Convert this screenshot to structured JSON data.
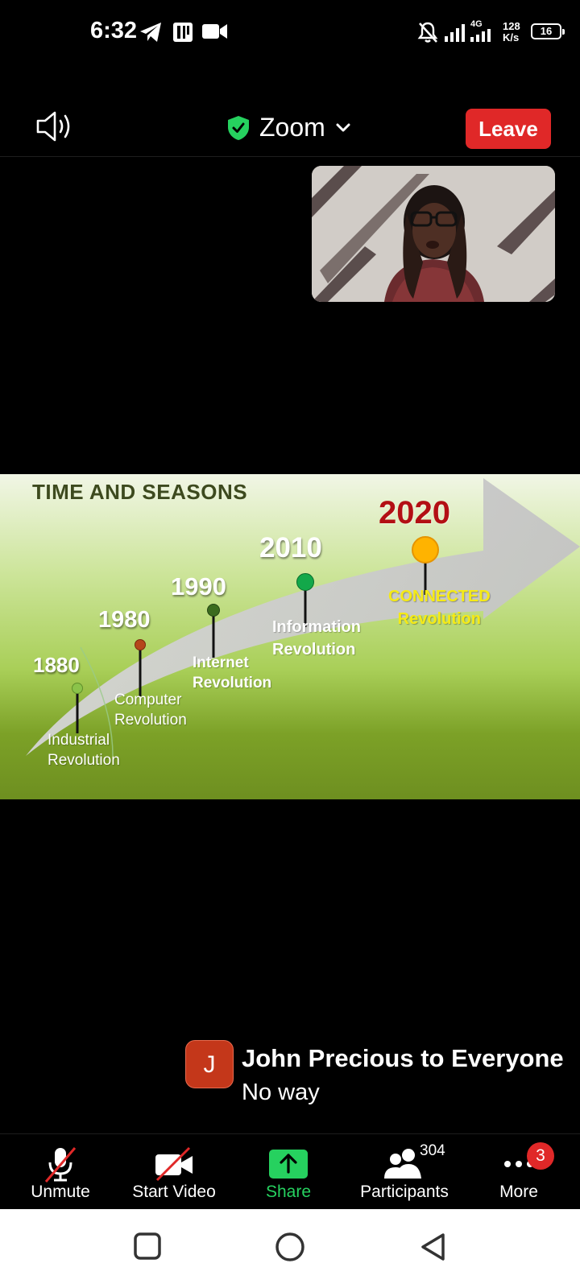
{
  "status_bar": {
    "time": "6:32",
    "net_type": "4G",
    "speed_value": "128",
    "speed_unit": "K/s",
    "battery": "16"
  },
  "header": {
    "title": "Zoom",
    "leave_label": "Leave"
  },
  "slide": {
    "title": "TIME AND SEASONS",
    "milestones": [
      {
        "year": "1880",
        "line1": "Industrial",
        "line2": "Revolution",
        "dot_color": "#8bc34a"
      },
      {
        "year": "1980",
        "line1": "Computer",
        "line2": "Revolution",
        "dot_color": "#b5471b"
      },
      {
        "year": "1990",
        "line1": "Internet",
        "line2": "Revolution",
        "dot_color": "#3b6b1e"
      },
      {
        "year": "2010",
        "line1": "Information",
        "line2": "Revolution",
        "dot_color": "#13a84a"
      },
      {
        "year": "2020",
        "line1": "CONNECTED",
        "line2": "Revolution",
        "dot_color": "#ffb300"
      }
    ]
  },
  "chat": {
    "avatar_initial": "J",
    "sender": "John Precious to Everyone",
    "message": "No way"
  },
  "toolbar": {
    "unmute": "Unmute",
    "start_video": "Start Video",
    "share": "Share",
    "participants": "Participants",
    "participants_count": "304",
    "more": "More",
    "more_badge": "3"
  },
  "colors": {
    "leave": "#e02828",
    "share": "#26d15f",
    "shield": "#26d15f",
    "year_2020": "#b30f14",
    "connected_text": "#f5ea16"
  }
}
